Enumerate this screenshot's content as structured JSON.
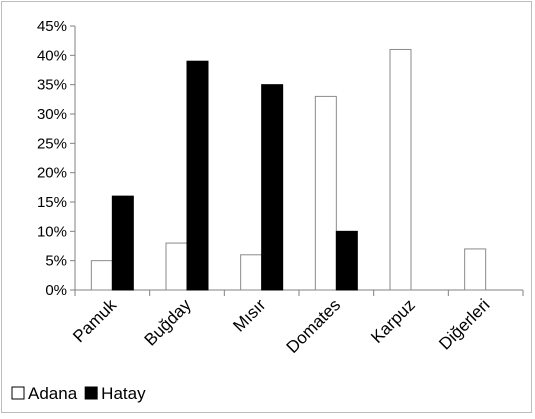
{
  "chart_data": {
    "type": "bar",
    "categories": [
      "Pamuk",
      "Buğday",
      "Mısır",
      "Domates",
      "Karpuz",
      "Diğerleri"
    ],
    "series": [
      {
        "name": "Adana",
        "values": [
          5,
          8,
          6,
          33,
          41,
          7
        ],
        "color": "#ffffff"
      },
      {
        "name": "Hatay",
        "values": [
          16,
          39,
          35,
          10,
          0,
          0
        ],
        "color": "#000000"
      }
    ],
    "y_ticks": [
      "0%",
      "5%",
      "10%",
      "15%",
      "20%",
      "25%",
      "30%",
      "35%",
      "40%",
      "45%"
    ],
    "ylim": [
      0,
      45
    ],
    "y_unit": "%",
    "grid": false,
    "legend_position": "bottom-left"
  }
}
